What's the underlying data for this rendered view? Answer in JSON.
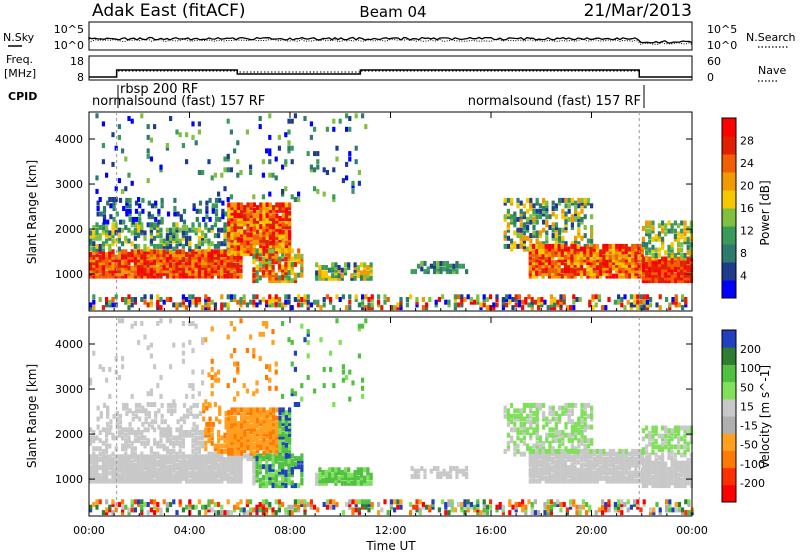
{
  "header": {
    "station": "Adak East (fitACF)",
    "beam": "Beam 04",
    "date": "21/Mar/2013"
  },
  "labels": {
    "nsky": "N.Sky",
    "nsearch": "N.Search",
    "freq_line1": "Freq.",
    "freq_line2": "[MHz]",
    "nave": "Nave",
    "cpid": "CPID",
    "noise_tick_top": "10^5",
    "noise_tick_bottom": "10^0",
    "freq_tick_top": "18",
    "freq_tick_bottom": "8",
    "nave_tick_top": "60",
    "nave_tick_bottom": "0"
  },
  "cpid_segments": [
    {
      "label": "normalsound (fast) 157 RF"
    },
    {
      "label": "rbsp 200 RF"
    },
    {
      "label": "normalsound (fast) 157 RF"
    }
  ],
  "colors": {
    "power": [
      "#0000ff",
      "#1e3c8c",
      "#2e7b6e",
      "#3a9a5a",
      "#7fc040",
      "#f5c800",
      "#f09a00",
      "#f06000",
      "#e02000",
      "#ff0000"
    ],
    "velocity": [
      "#2040c0",
      "#2e7d32",
      "#4fc040",
      "#7fe05a",
      "#c8c8c8",
      "#b0b0b0",
      "#ffa020",
      "#ff7a00",
      "#ff3000",
      "#ff0000"
    ],
    "ground": "#c8c8c8"
  },
  "chart_data": [
    {
      "type": "heatmap",
      "quantity": "power",
      "xlabel": "",
      "ylabel": "Slant Range [km]",
      "x_ticks": [],
      "y_ticks": [
        "1000",
        "2000",
        "3000",
        "4000"
      ],
      "xlim": [
        0,
        24
      ],
      "ylim": [
        180,
        4600
      ],
      "colorbar_label": "Power [dB]",
      "colorbar_ticks": [
        "4",
        "8",
        "12",
        "16",
        "20",
        "24",
        "28"
      ],
      "colorbar_range": [
        0,
        30
      ]
    },
    {
      "type": "heatmap",
      "quantity": "velocity",
      "xlabel": "Time UT",
      "ylabel": "Slant Range [km]",
      "x_ticks": [
        "00:00",
        "04:00",
        "08:00",
        "12:00",
        "16:00",
        "20:00",
        "00:00"
      ],
      "y_ticks": [
        "1000",
        "2000",
        "3000",
        "4000"
      ],
      "xlim": [
        0,
        24
      ],
      "ylim": [
        180,
        4600
      ],
      "colorbar_label": "Velocity [m s^-1]",
      "colorbar_ticks": [
        "200",
        "100",
        "50",
        "15",
        "-15",
        "-50",
        "-100",
        "-200"
      ],
      "colorbar_range": [
        -250,
        250
      ]
    }
  ]
}
